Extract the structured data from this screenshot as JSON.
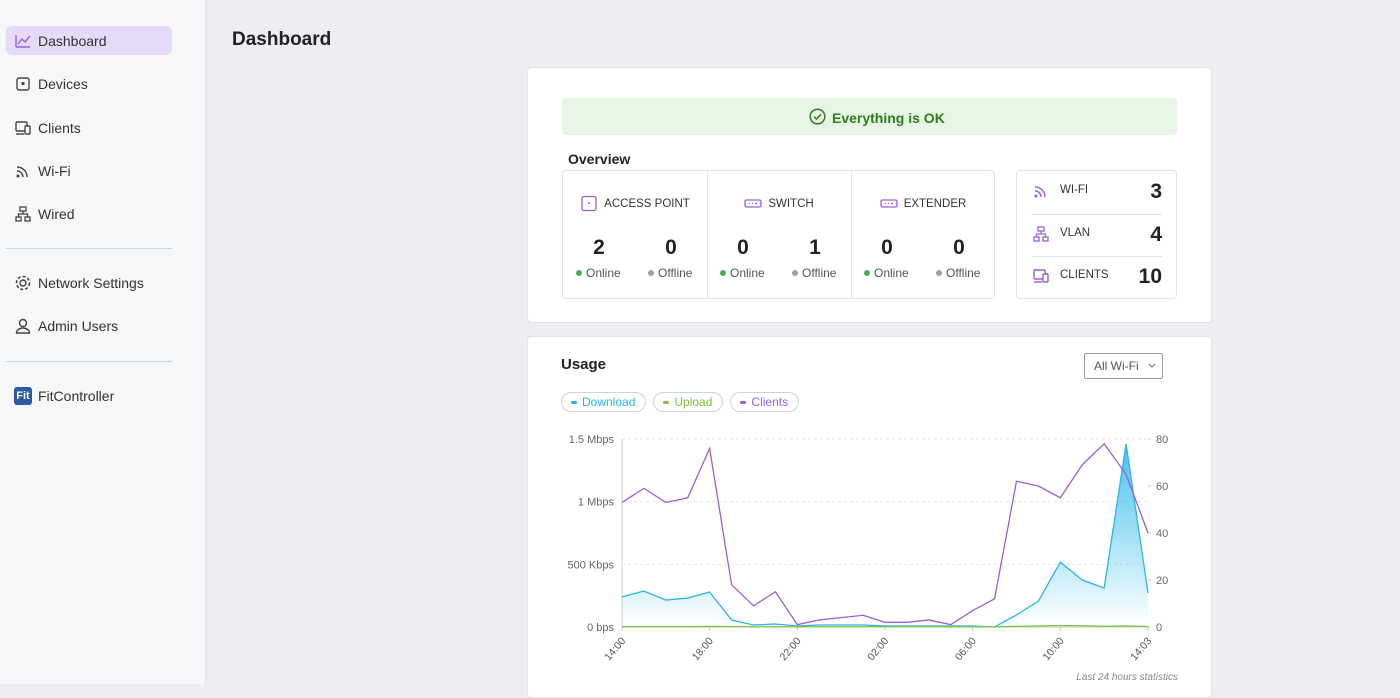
{
  "sidebar": {
    "nav": [
      {
        "label": "Dashboard"
      },
      {
        "label": "Devices"
      },
      {
        "label": "Clients"
      },
      {
        "label": "Wi-Fi"
      },
      {
        "label": "Wired"
      }
    ],
    "settings": [
      {
        "label": "Network Settings"
      },
      {
        "label": "Admin Users"
      }
    ],
    "brand": {
      "icon": "Fit",
      "label": "FitController"
    }
  },
  "header": {
    "title": "Dashboard"
  },
  "status": {
    "message": "Everything is OK"
  },
  "overview": {
    "title": "Overview",
    "devices": [
      {
        "label": "ACCESS POINT",
        "online": 2,
        "online_label": "Online",
        "offline": 0,
        "offline_label": "Offline"
      },
      {
        "label": "SWITCH",
        "online": 0,
        "online_label": "Online",
        "offline": 1,
        "offline_label": "Offline"
      },
      {
        "label": "EXTENDER",
        "online": 0,
        "online_label": "Online",
        "offline": 0,
        "offline_label": "Offline"
      }
    ],
    "stats": [
      {
        "label": "WI-FI",
        "value": 3
      },
      {
        "label": "VLAN",
        "value": 4
      },
      {
        "label": "CLIENTS",
        "value": 10
      }
    ]
  },
  "usage": {
    "title": "Usage",
    "filter": "All Wi-Fi",
    "footnote": "Last 24 hours statistics"
  },
  "chart_data": {
    "type": "line",
    "categories": [
      "14:00",
      null,
      null,
      null,
      "18:00",
      null,
      null,
      null,
      "22:00",
      null,
      null,
      null,
      "02:00",
      null,
      null,
      null,
      "06:00",
      null,
      null,
      null,
      "10:00",
      null,
      null,
      null,
      "14:03"
    ],
    "series": [
      {
        "name": "Download",
        "color": "#29b6e8",
        "fill": true,
        "values": [
          240,
          287,
          215,
          231,
          279,
          56,
          16,
          24,
          8,
          16,
          16,
          16,
          8,
          8,
          8,
          8,
          8,
          0,
          96,
          207,
          518,
          375,
          311,
          1460,
          271
        ]
      },
      {
        "name": "Upload",
        "color": "#7cc242",
        "values": [
          3,
          3,
          3,
          3,
          5,
          3,
          2,
          2,
          2,
          2,
          2,
          2,
          2,
          2,
          2,
          2,
          2,
          2,
          5,
          8,
          12,
          10,
          6,
          8,
          4
        ]
      },
      {
        "name": "Clients",
        "color": "#9c5fd6",
        "axis": "y2",
        "values": [
          53,
          59,
          53,
          55,
          76,
          18,
          9,
          15,
          1,
          3,
          4,
          5,
          2,
          2,
          3,
          1,
          7,
          12,
          62,
          60,
          55,
          69,
          78,
          65,
          40
        ]
      }
    ],
    "ylim": [
      0,
      1500
    ],
    "yticks": [
      {
        "value": 0,
        "label": "0 bps"
      },
      {
        "value": 500,
        "label": "500 Kbps"
      },
      {
        "value": 1000,
        "label": "1 Mbps"
      },
      {
        "value": 1500,
        "label": "1.5 Mbps"
      }
    ],
    "y2lim": [
      0,
      80
    ],
    "y2ticks": [
      0,
      20,
      40,
      60,
      80
    ],
    "grid": true
  }
}
